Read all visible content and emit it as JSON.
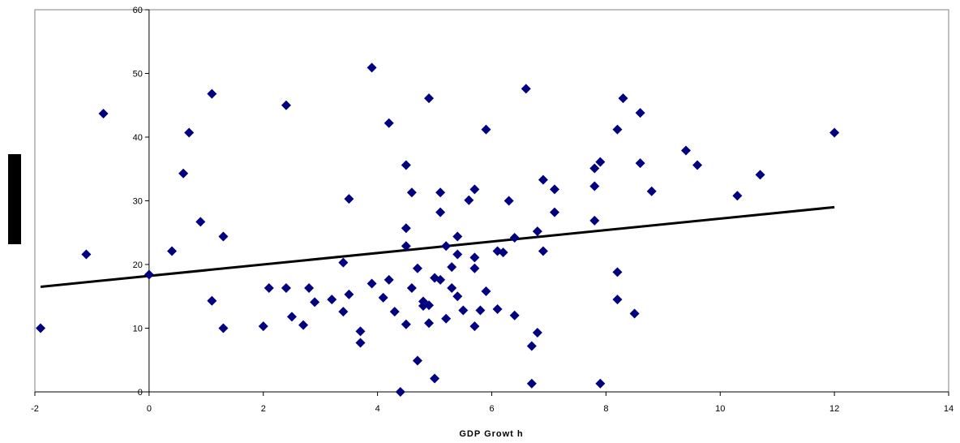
{
  "chart_data": {
    "type": "scatter",
    "xlabel": "GDP Growt h",
    "ylabel": "",
    "xlim": [
      -2,
      14
    ],
    "ylim": [
      0,
      60
    ],
    "xticks": [
      -2,
      0,
      2,
      4,
      6,
      8,
      10,
      12,
      14
    ],
    "yticks": [
      0,
      10,
      20,
      30,
      40,
      50,
      60
    ],
    "grid": false,
    "legend": "none",
    "marker_color": "#000080",
    "trendline": {
      "x": [
        -1.9,
        12.0
      ],
      "y": [
        16.5,
        29.0
      ],
      "color": "#000000"
    },
    "points": [
      [
        -1.9,
        10.0
      ],
      [
        -1.1,
        21.6
      ],
      [
        -0.8,
        43.7
      ],
      [
        0.0,
        18.4
      ],
      [
        0.4,
        22.1
      ],
      [
        0.6,
        34.3
      ],
      [
        0.7,
        40.7
      ],
      [
        0.9,
        26.7
      ],
      [
        1.1,
        46.8
      ],
      [
        1.1,
        14.3
      ],
      [
        1.3,
        24.4
      ],
      [
        1.3,
        10.0
      ],
      [
        2.0,
        10.3
      ],
      [
        2.1,
        16.3
      ],
      [
        2.4,
        45.0
      ],
      [
        2.4,
        16.3
      ],
      [
        2.5,
        11.8
      ],
      [
        2.7,
        10.5
      ],
      [
        2.8,
        16.3
      ],
      [
        2.9,
        14.1
      ],
      [
        3.2,
        14.5
      ],
      [
        3.4,
        20.3
      ],
      [
        3.4,
        12.6
      ],
      [
        3.5,
        30.3
      ],
      [
        3.5,
        15.3
      ],
      [
        3.7,
        9.5
      ],
      [
        3.7,
        7.7
      ],
      [
        3.9,
        50.9
      ],
      [
        3.9,
        17.0
      ],
      [
        4.1,
        14.8
      ],
      [
        4.2,
        42.2
      ],
      [
        4.2,
        17.6
      ],
      [
        4.3,
        12.6
      ],
      [
        4.4,
        0.0
      ],
      [
        4.5,
        35.6
      ],
      [
        4.5,
        25.7
      ],
      [
        4.5,
        22.9
      ],
      [
        4.5,
        10.6
      ],
      [
        4.6,
        31.3
      ],
      [
        4.6,
        16.3
      ],
      [
        4.7,
        19.4
      ],
      [
        4.7,
        4.9
      ],
      [
        4.8,
        14.2
      ],
      [
        4.8,
        13.5
      ],
      [
        4.9,
        46.1
      ],
      [
        4.9,
        13.6
      ],
      [
        4.9,
        10.8
      ],
      [
        5.0,
        17.9
      ],
      [
        5.0,
        2.1
      ],
      [
        5.1,
        31.3
      ],
      [
        5.1,
        28.2
      ],
      [
        5.1,
        17.6
      ],
      [
        5.2,
        22.9
      ],
      [
        5.2,
        11.5
      ],
      [
        5.3,
        19.6
      ],
      [
        5.3,
        16.3
      ],
      [
        5.4,
        24.4
      ],
      [
        5.4,
        21.6
      ],
      [
        5.4,
        15.0
      ],
      [
        5.5,
        12.8
      ],
      [
        5.6,
        30.1
      ],
      [
        5.7,
        31.8
      ],
      [
        5.7,
        21.1
      ],
      [
        5.7,
        19.4
      ],
      [
        5.7,
        10.3
      ],
      [
        5.8,
        12.8
      ],
      [
        5.9,
        41.2
      ],
      [
        5.9,
        15.8
      ],
      [
        6.1,
        22.1
      ],
      [
        6.1,
        13.0
      ],
      [
        6.2,
        21.9
      ],
      [
        6.3,
        30.0
      ],
      [
        6.4,
        24.2
      ],
      [
        6.4,
        12.0
      ],
      [
        6.6,
        47.6
      ],
      [
        6.7,
        7.2
      ],
      [
        6.7,
        1.3
      ],
      [
        6.8,
        25.2
      ],
      [
        6.8,
        9.3
      ],
      [
        6.9,
        33.3
      ],
      [
        6.9,
        22.1
      ],
      [
        7.1,
        31.8
      ],
      [
        7.1,
        28.2
      ],
      [
        7.8,
        35.1
      ],
      [
        7.8,
        32.3
      ],
      [
        7.8,
        26.9
      ],
      [
        7.9,
        36.1
      ],
      [
        7.9,
        1.3
      ],
      [
        8.2,
        41.2
      ],
      [
        8.2,
        18.8
      ],
      [
        8.2,
        14.5
      ],
      [
        8.3,
        46.1
      ],
      [
        8.5,
        12.3
      ],
      [
        8.6,
        43.8
      ],
      [
        8.6,
        35.9
      ],
      [
        8.8,
        31.5
      ],
      [
        9.4,
        37.9
      ],
      [
        9.6,
        35.6
      ],
      [
        10.3,
        30.8
      ],
      [
        10.7,
        34.1
      ],
      [
        12.0,
        40.7
      ]
    ]
  }
}
